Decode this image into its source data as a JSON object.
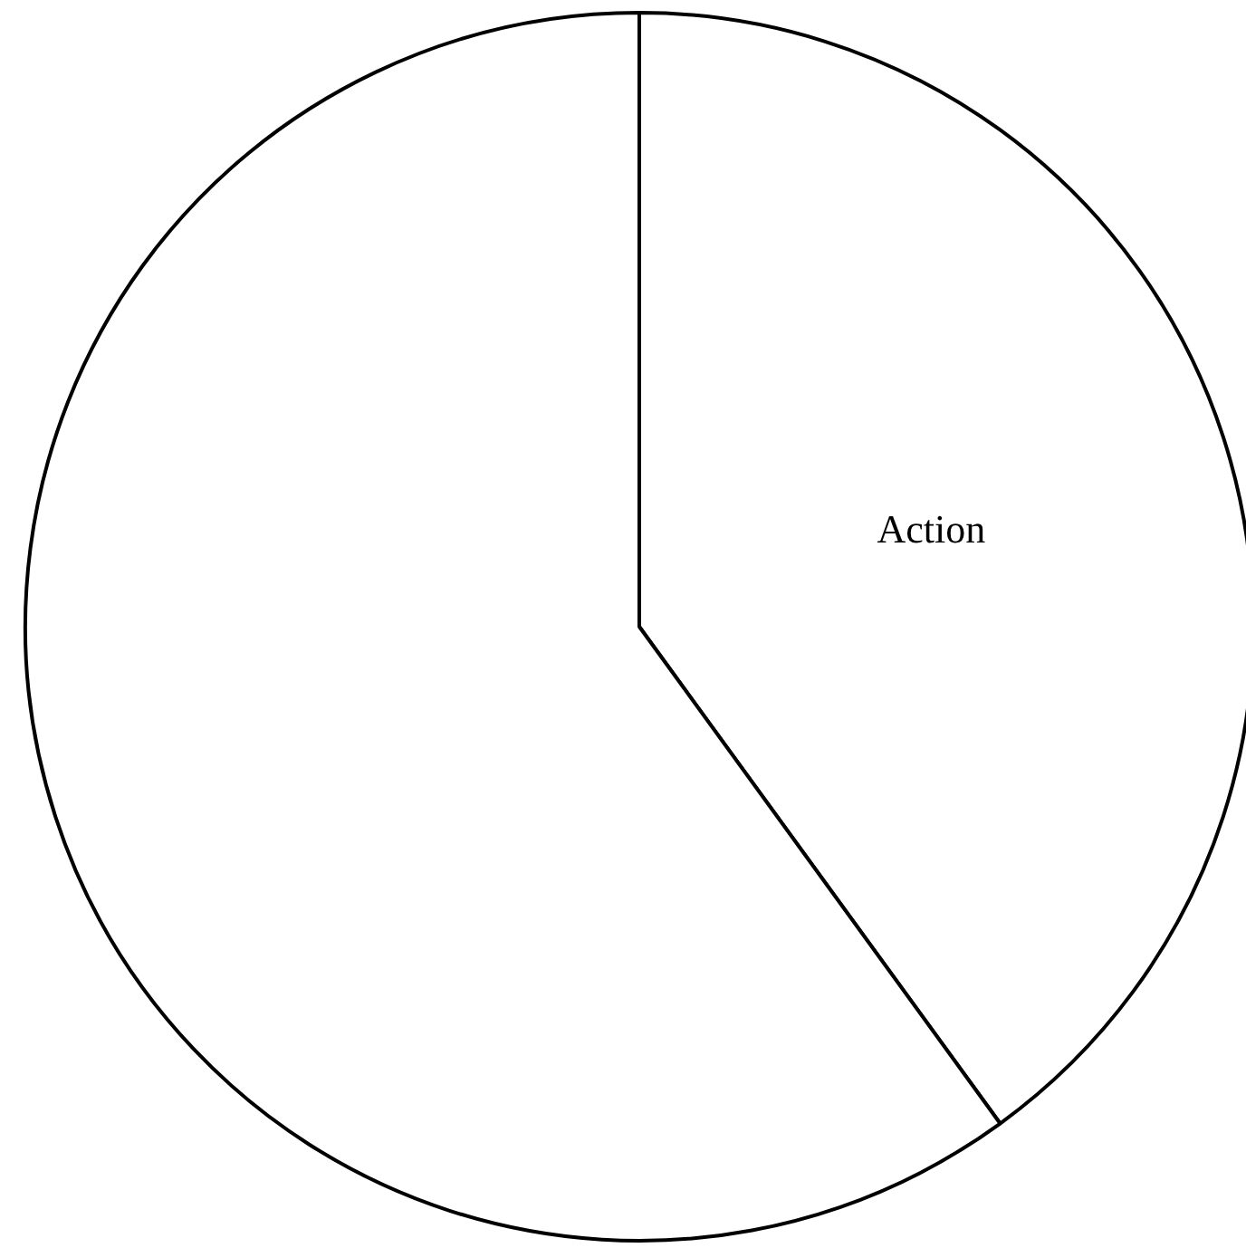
{
  "chart_data": {
    "type": "pie",
    "categories": [
      "Action",
      null
    ],
    "values": [
      40,
      60
    ],
    "colors": [
      "#ffffff",
      "#ffffff"
    ],
    "legend": false
  }
}
